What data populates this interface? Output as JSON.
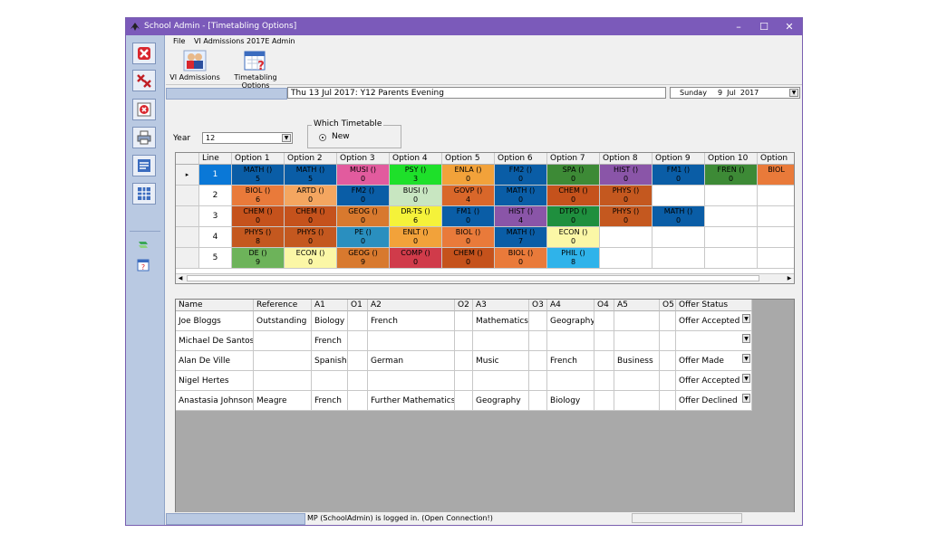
{
  "window": {
    "title": "School Admin - [Timetabling Options]",
    "controls": {
      "minimize": "–",
      "maximize": "☐",
      "close": "✕"
    }
  },
  "menu": {
    "items": [
      "File",
      "VI Admissions 2017E",
      "Admin"
    ]
  },
  "toolbar": {
    "buttons": [
      {
        "label": "VI Admissions",
        "icon": "people-icon"
      },
      {
        "label": "Timetabling Options",
        "icon": "timetable-question-icon"
      }
    ]
  },
  "sidebar": {
    "buttons": [
      "close-red-icon",
      "close-all-icon",
      "delete-icon",
      "print-icon",
      "list-icon",
      "grid-icon"
    ],
    "small": [
      "vi-admissions-small-icon",
      "timetable-small-icon"
    ]
  },
  "datebar": {
    "event": "Thu 13 Jul 2017: Y12 Parents Evening",
    "date_day": "Sunday",
    "date_value": "9  Jul  2017"
  },
  "year": {
    "label": "Year",
    "value": "12"
  },
  "which_timetable": {
    "legend": "Which Timetable",
    "option": "New"
  },
  "options_grid": {
    "headers": [
      "Line",
      "Option 1",
      "Option 2",
      "Option 3",
      "Option 4",
      "Option 5",
      "Option 6",
      "Option 7",
      "Option 8",
      "Option 9",
      "Option 10",
      "Option"
    ],
    "rows": [
      {
        "line": "1",
        "cells": [
          {
            "t": "MATH ()",
            "n": "5",
            "c": "#0a5da6",
            "fc": "#000"
          },
          {
            "t": "MATH ()",
            "n": "5",
            "c": "#0a5da6",
            "fc": "#000"
          },
          {
            "t": "MUSI ()",
            "n": "0",
            "c": "#e25b9e",
            "fc": "#000"
          },
          {
            "t": "PSY ()",
            "n": "3",
            "c": "#1ee02a",
            "fc": "#000"
          },
          {
            "t": "ENLA ()",
            "n": "0",
            "c": "#f2a23a",
            "fc": "#000"
          },
          {
            "t": "FM2 ()",
            "n": "0",
            "c": "#0a5da6",
            "fc": "#000"
          },
          {
            "t": "SPA ()",
            "n": "0",
            "c": "#3d8a36",
            "fc": "#000"
          },
          {
            "t": "HIST ()",
            "n": "0",
            "c": "#8a55a8",
            "fc": "#000"
          },
          {
            "t": "FM1 ()",
            "n": "0",
            "c": "#0a5da6",
            "fc": "#000"
          },
          {
            "t": "FREN ()",
            "n": "0",
            "c": "#3d8a36",
            "fc": "#000"
          },
          {
            "t": "BIOL",
            "n": "",
            "c": "#e97a3a",
            "fc": "#000"
          }
        ]
      },
      {
        "line": "2",
        "cells": [
          {
            "t": "BIOL ()",
            "n": "6",
            "c": "#e97a3a",
            "fc": "#000"
          },
          {
            "t": "ARTD ()",
            "n": "0",
            "c": "#f4a660",
            "fc": "#000"
          },
          {
            "t": "FM2 ()",
            "n": "0",
            "c": "#0a5da6",
            "fc": "#000"
          },
          {
            "t": "BUSI ()",
            "n": "0",
            "c": "#c8e6c1",
            "fc": "#000"
          },
          {
            "t": "GOVP ()",
            "n": "4",
            "c": "#d9672a",
            "fc": "#000"
          },
          {
            "t": "MATH ()",
            "n": "0",
            "c": "#0a5da6",
            "fc": "#000"
          },
          {
            "t": "CHEM ()",
            "n": "0",
            "c": "#c5521c",
            "fc": "#000"
          },
          {
            "t": "PHYS ()",
            "n": "0",
            "c": "#c4581f",
            "fc": "#000"
          },
          {
            "t": "",
            "n": "",
            "c": "#ffffff",
            "fc": "#000"
          },
          {
            "t": "",
            "n": "",
            "c": "#ffffff",
            "fc": "#000"
          },
          {
            "t": "",
            "n": "",
            "c": "#ffffff",
            "fc": "#000"
          }
        ]
      },
      {
        "line": "3",
        "cells": [
          {
            "t": "CHEM ()",
            "n": "0",
            "c": "#c5521c",
            "fc": "#000"
          },
          {
            "t": "CHEM ()",
            "n": "0",
            "c": "#c5521c",
            "fc": "#000"
          },
          {
            "t": "GEOG ()",
            "n": "0",
            "c": "#d8792e",
            "fc": "#000"
          },
          {
            "t": "DR-TS ()",
            "n": "6",
            "c": "#f5f23a",
            "fc": "#000"
          },
          {
            "t": "FM1 ()",
            "n": "0",
            "c": "#0a5da6",
            "fc": "#000"
          },
          {
            "t": "HIST ()",
            "n": "4",
            "c": "#8a55a8",
            "fc": "#000"
          },
          {
            "t": "DTPD ()",
            "n": "0",
            "c": "#1f8f3e",
            "fc": "#000"
          },
          {
            "t": "PHYS ()",
            "n": "0",
            "c": "#c4581f",
            "fc": "#000"
          },
          {
            "t": "MATH ()",
            "n": "0",
            "c": "#0a5da6",
            "fc": "#000"
          },
          {
            "t": "",
            "n": "",
            "c": "#ffffff",
            "fc": "#000"
          },
          {
            "t": "",
            "n": "",
            "c": "#ffffff",
            "fc": "#000"
          }
        ]
      },
      {
        "line": "4",
        "cells": [
          {
            "t": "PHYS ()",
            "n": "8",
            "c": "#c4581f",
            "fc": "#000"
          },
          {
            "t": "PHYS ()",
            "n": "0",
            "c": "#c4581f",
            "fc": "#000"
          },
          {
            "t": "PE ()",
            "n": "0",
            "c": "#2a8fbf",
            "fc": "#000"
          },
          {
            "t": "ENLT ()",
            "n": "0",
            "c": "#f2a23a",
            "fc": "#000"
          },
          {
            "t": "BIOL ()",
            "n": "0",
            "c": "#e97a3a",
            "fc": "#000"
          },
          {
            "t": "MATH ()",
            "n": "7",
            "c": "#0a5da6",
            "fc": "#000"
          },
          {
            "t": "ECON ()",
            "n": "0",
            "c": "#fbf7a6",
            "fc": "#000"
          },
          {
            "t": "",
            "n": "",
            "c": "#ffffff",
            "fc": "#000"
          },
          {
            "t": "",
            "n": "",
            "c": "#ffffff",
            "fc": "#000"
          },
          {
            "t": "",
            "n": "",
            "c": "#ffffff",
            "fc": "#000"
          },
          {
            "t": "",
            "n": "",
            "c": "#ffffff",
            "fc": "#000"
          }
        ]
      },
      {
        "line": "5",
        "cells": [
          {
            "t": "DE ()",
            "n": "9",
            "c": "#6db35a",
            "fc": "#000"
          },
          {
            "t": "ECON ()",
            "n": "0",
            "c": "#fbf7a6",
            "fc": "#000"
          },
          {
            "t": "GEOG ()",
            "n": "9",
            "c": "#d8792e",
            "fc": "#000"
          },
          {
            "t": "COMP ()",
            "n": "0",
            "c": "#d03b4a",
            "fc": "#000"
          },
          {
            "t": "CHEM ()",
            "n": "0",
            "c": "#c5521c",
            "fc": "#000"
          },
          {
            "t": "BIOL ()",
            "n": "0",
            "c": "#e97a3a",
            "fc": "#000"
          },
          {
            "t": "PHIL ()",
            "n": "8",
            "c": "#2fb3ea",
            "fc": "#000"
          },
          {
            "t": "",
            "n": "",
            "c": "#ffffff",
            "fc": "#000"
          },
          {
            "t": "",
            "n": "",
            "c": "#ffffff",
            "fc": "#000"
          },
          {
            "t": "",
            "n": "",
            "c": "#ffffff",
            "fc": "#000"
          },
          {
            "t": "",
            "n": "",
            "c": "#ffffff",
            "fc": "#000"
          }
        ]
      }
    ]
  },
  "students_grid": {
    "headers": [
      "Name",
      "Reference",
      "A1",
      "O1",
      "A2",
      "O2",
      "A3",
      "O3",
      "A4",
      "O4",
      "A5",
      "O5",
      "Offer Status"
    ],
    "rows": [
      [
        "Joe Bloggs",
        "Outstanding",
        "Biology",
        "",
        "French",
        "",
        "Mathematics",
        "",
        "Geography",
        "",
        "",
        "",
        "Offer Accepted"
      ],
      [
        "Michael De Santos",
        "",
        "French",
        "",
        "",
        "",
        "",
        "",
        "",
        "",
        "",
        "",
        ""
      ],
      [
        "Alan De Ville",
        "",
        "Spanish",
        "",
        "German",
        "",
        "Music",
        "",
        "French",
        "",
        "Business",
        "",
        "Offer Made"
      ],
      [
        "Nigel Hertes",
        "",
        "",
        "",
        "",
        "",
        "",
        "",
        "",
        "",
        "",
        "",
        "Offer Accepted"
      ],
      [
        "Anastasia Johnson",
        "Meagre",
        "French",
        "",
        "Further Mathematics",
        "",
        "Geography",
        "",
        "Biology",
        "",
        "",
        "",
        "Offer Declined"
      ]
    ]
  },
  "status": {
    "message": "MP (SchoolAdmin) is logged in. (Open Connection!)"
  }
}
